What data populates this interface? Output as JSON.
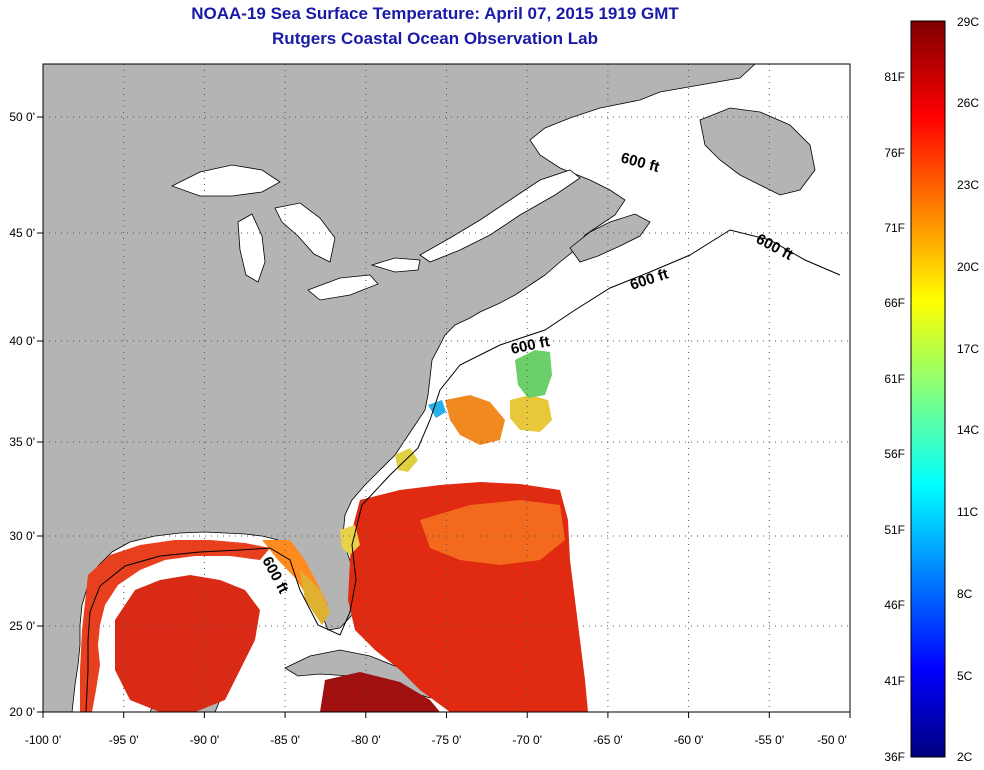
{
  "title_line1": "NOAA-19 Sea Surface Temperature:  April 07, 2015 1919 GMT",
  "title_line2": "Rutgers Coastal Ocean Observation Lab",
  "map": {
    "lon_range": [
      -100,
      -50
    ],
    "lat_range": [
      20,
      52.5
    ],
    "lon_ticks": [
      "-100 0'",
      "-95 0'",
      "-90 0'",
      "-85 0'",
      "-80 0'",
      "-75 0'",
      "-70 0'",
      "-65 0'",
      "-60 0'",
      "-55 0'",
      "-50 0'"
    ],
    "lat_ticks": [
      "20 0'",
      "25 0'",
      "30 0'",
      "35 0'",
      "40 0'",
      "45 0'",
      "50 0'"
    ],
    "grid": "dotted",
    "land_color": "#b4b4b4",
    "contour_labels": [
      "600 ft",
      "600 ft",
      "600 ft",
      "600 ft",
      "600 ft"
    ]
  },
  "colorbar": {
    "celsius": [
      "29C",
      "26C",
      "23C",
      "20C",
      "17C",
      "14C",
      "11C",
      "8C",
      "5C",
      "2C"
    ],
    "fahrenheit": [
      "81F",
      "76F",
      "71F",
      "66F",
      "61F",
      "56F",
      "51F",
      "46F",
      "41F",
      "36F"
    ],
    "colormap": "jet",
    "low_color": "#00007f",
    "high_color": "#7f0000"
  }
}
